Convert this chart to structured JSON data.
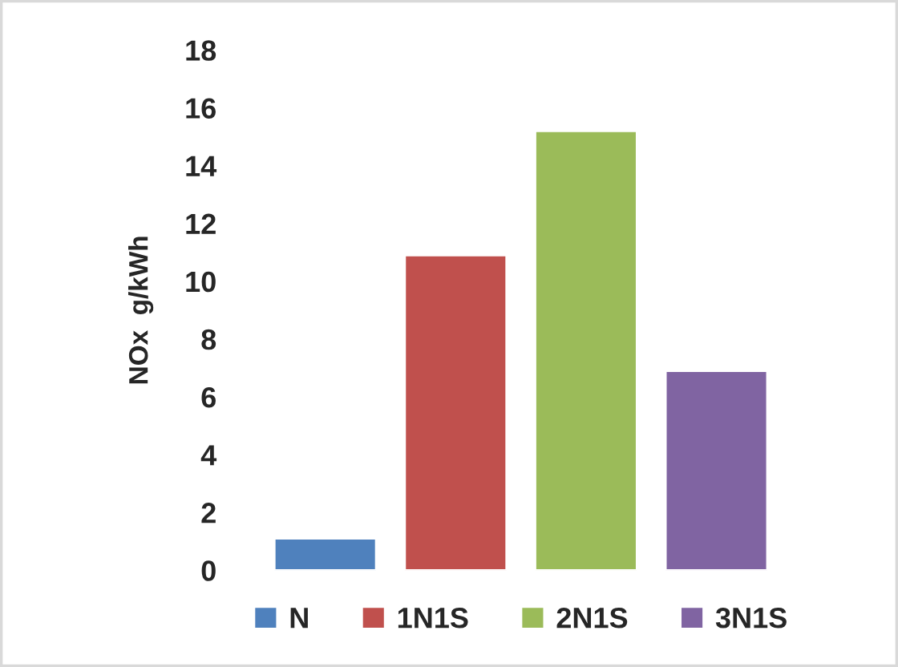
{
  "chart_data": {
    "type": "bar",
    "ylabel": "NOx  g/kWh",
    "categories": [
      null
    ],
    "series": [
      {
        "name": "N",
        "color": "#4f81bd",
        "values": [
          1.1
        ]
      },
      {
        "name": "1N1S",
        "color": "#c0504d",
        "values": [
          10.9
        ]
      },
      {
        "name": "2N1S",
        "color": "#9bbb59",
        "values": [
          15.2
        ]
      },
      {
        "name": "3N1S",
        "color": "#8064a2",
        "values": [
          6.9
        ]
      }
    ],
    "ylim": [
      0,
      18
    ],
    "yticks": [
      0,
      2,
      4,
      6,
      8,
      10,
      12,
      14,
      16,
      18
    ],
    "grid": false,
    "legend": "bottom"
  }
}
